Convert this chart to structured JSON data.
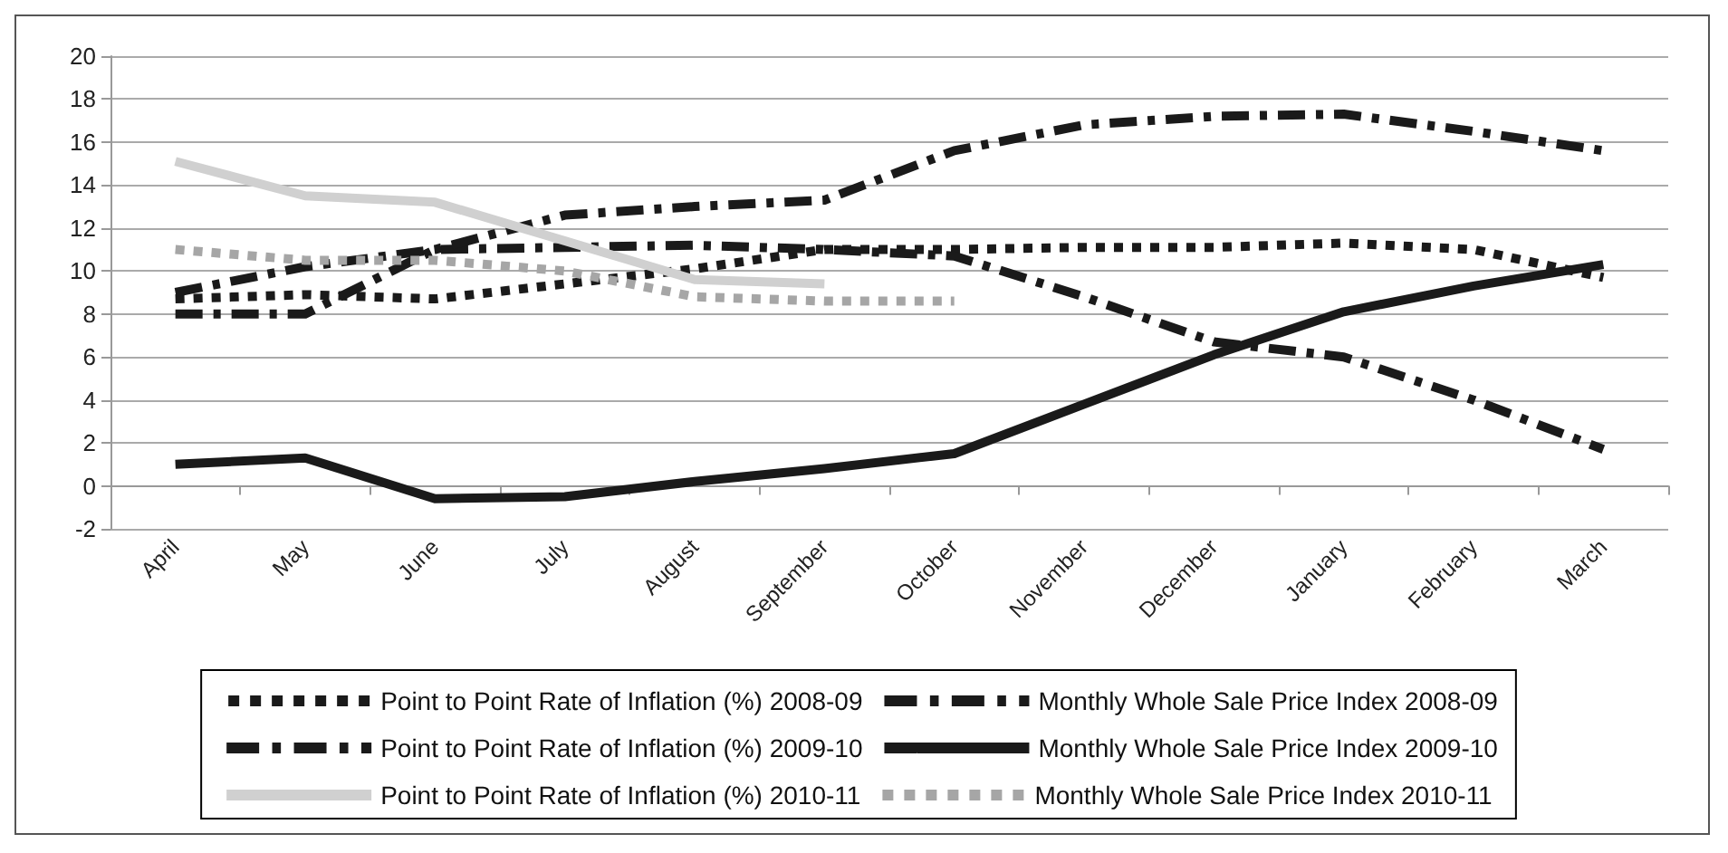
{
  "chart_data": {
    "type": "line",
    "categories": [
      "April",
      "May",
      "June",
      "July",
      "August",
      "September",
      "October",
      "November",
      "December",
      "January",
      "February",
      "March"
    ],
    "series": [
      {
        "name": "Point to Point Rate of Inflation (%) 2008-09",
        "color": "#1a1a1a",
        "line_style": "dotted",
        "values": [
          8.7,
          8.9,
          8.7,
          9.4,
          10.1,
          11.0,
          11.0,
          11.1,
          11.1,
          11.3,
          11.0,
          9.7
        ]
      },
      {
        "name": "Monthly Whole Sale Price Index 2008-09",
        "color": "#1a1a1a",
        "line_style": "dashed",
        "values": [
          8.0,
          8.0,
          11.0,
          11.1,
          11.2,
          11.0,
          10.7,
          8.8,
          6.7,
          6.0,
          4.0,
          1.7
        ]
      },
      {
        "name": "Point to Point Rate of Inflation (%) 2009-10",
        "color": "#1a1a1a",
        "line_style": "dashed",
        "values": [
          9.0,
          10.2,
          11.0,
          12.6,
          13.0,
          13.3,
          15.6,
          16.8,
          17.2,
          17.3,
          16.5,
          15.6
        ]
      },
      {
        "name": "Monthly Whole Sale Price Index 2009-10",
        "color": "#1a1a1a",
        "line_style": "solid",
        "values": [
          1.0,
          1.3,
          -0.6,
          -0.5,
          0.2,
          0.8,
          1.5,
          3.8,
          6.1,
          8.1,
          9.3,
          10.3
        ]
      },
      {
        "name": "Point to Point Rate of Inflation (%) 2010-11",
        "color": "#d0d0d0",
        "line_style": "solid",
        "values": [
          15.1,
          13.5,
          13.2,
          11.4,
          9.6,
          9.4,
          null,
          null,
          null,
          null,
          null,
          null
        ]
      },
      {
        "name": "Monthly Whole Sale Price Index 2010-11",
        "color": "#a6a6a6",
        "line_style": "dotted",
        "values": [
          11.0,
          10.5,
          10.5,
          10.0,
          8.8,
          8.6,
          8.6,
          null,
          null,
          null,
          null,
          null
        ]
      }
    ],
    "ylim": [
      -2,
      20
    ],
    "yticks": [
      -2,
      0,
      2,
      4,
      6,
      8,
      10,
      12,
      14,
      16,
      18,
      20
    ],
    "grid": "y",
    "legend": "bottom",
    "marker": "none"
  }
}
